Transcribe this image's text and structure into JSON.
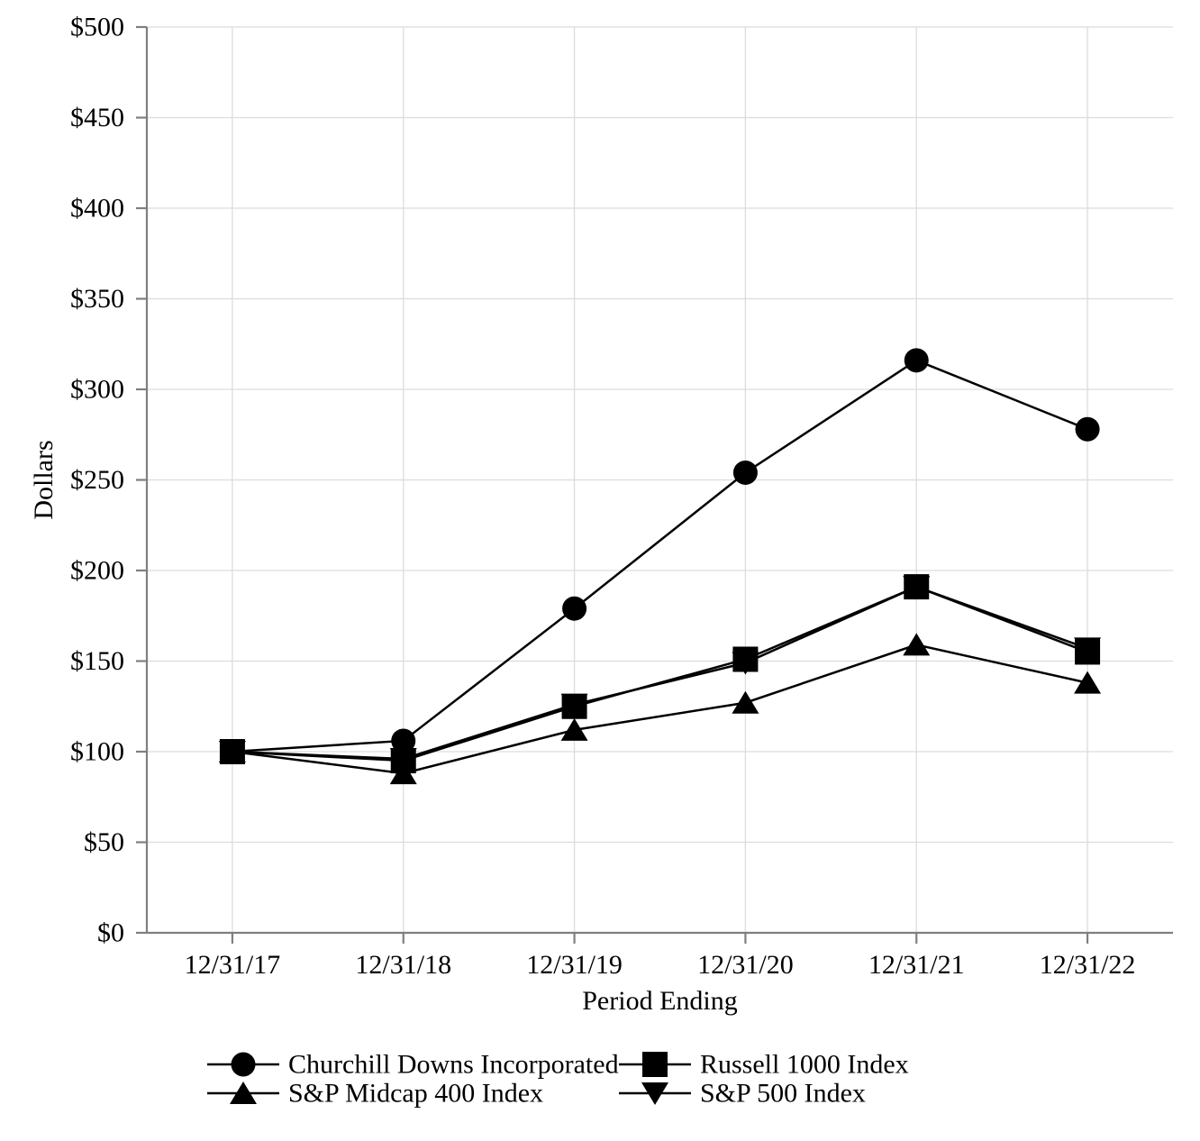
{
  "chart_data": {
    "type": "line",
    "title": "",
    "xlabel": "Period Ending",
    "ylabel": "Dollars",
    "categories": [
      "12/31/17",
      "12/31/18",
      "12/31/19",
      "12/31/20",
      "12/31/21",
      "12/31/22"
    ],
    "series": [
      {
        "name": "Churchill Downs Incorporated",
        "marker": "circle",
        "values": [
          100,
          106,
          179,
          254,
          316,
          278
        ]
      },
      {
        "name": "Russell 1000 Index",
        "marker": "square",
        "values": [
          100,
          95,
          125,
          151,
          191,
          155
        ]
      },
      {
        "name": "S&P Midcap 400 Index",
        "marker": "triangle-up",
        "values": [
          100,
          88,
          112,
          127,
          159,
          138
        ]
      },
      {
        "name": "S&P 500 Index",
        "marker": "triangle-down",
        "values": [
          100,
          96,
          126,
          149,
          191,
          157
        ]
      }
    ],
    "ylim": [
      0,
      500
    ],
    "ytick_step": 50,
    "y_tick_labels": [
      "$0",
      "$50",
      "$100",
      "$150",
      "$200",
      "$250",
      "$300",
      "$350",
      "$400",
      "$450",
      "$500"
    ],
    "grid": true,
    "legend_position": "bottom",
    "colors": {
      "series": "#000000",
      "grid": "#dcdcdc",
      "axis": "#7f7f7f",
      "text": "#000000",
      "background": "#ffffff"
    }
  }
}
